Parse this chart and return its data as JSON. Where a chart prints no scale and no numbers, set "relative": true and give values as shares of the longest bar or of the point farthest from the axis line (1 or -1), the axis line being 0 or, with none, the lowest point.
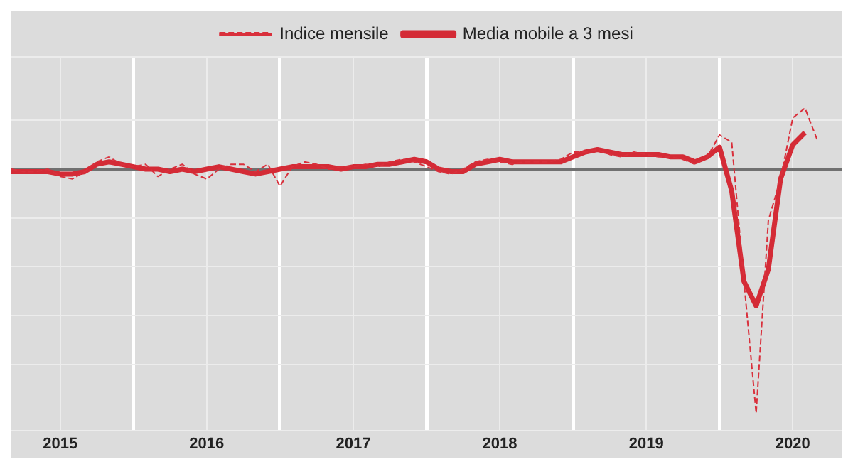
{
  "chart_data": {
    "type": "line",
    "relative": true,
    "grid": true,
    "legend": "top",
    "marker": "none",
    "x": [
      "2015-03",
      "2015-04",
      "2015-05",
      "2015-06",
      "2015-07",
      "2015-08",
      "2015-09",
      "2015-10",
      "2015-11",
      "2015-12",
      "2016-01",
      "2016-02",
      "2016-03",
      "2016-04",
      "2016-05",
      "2016-06",
      "2016-07",
      "2016-08",
      "2016-09",
      "2016-10",
      "2016-11",
      "2016-12",
      "2017-01",
      "2017-02",
      "2017-03",
      "2017-04",
      "2017-05",
      "2017-06",
      "2017-07",
      "2017-08",
      "2017-09",
      "2017-10",
      "2017-11",
      "2017-12",
      "2018-01",
      "2018-02",
      "2018-03",
      "2018-04",
      "2018-05",
      "2018-06",
      "2018-07",
      "2018-08",
      "2018-09",
      "2018-10",
      "2018-11",
      "2018-12",
      "2019-01",
      "2019-02",
      "2019-03",
      "2019-04",
      "2019-05",
      "2019-06",
      "2019-07",
      "2019-08",
      "2019-09",
      "2019-10",
      "2019-11",
      "2019-12",
      "2020-01",
      "2020-02",
      "2020-03",
      "2020-04",
      "2020-05",
      "2020-06",
      "2020-07",
      "2020-08",
      "2020-09"
    ],
    "xlim": [
      "2015-03",
      "2020-11"
    ],
    "xticks": [
      {
        "value": "2015-07",
        "label": "2015"
      },
      {
        "value": "2016-01",
        "label": null
      },
      {
        "value": "2016-07",
        "label": "2016"
      },
      {
        "value": "2017-01",
        "label": null
      },
      {
        "value": "2017-07",
        "label": "2017"
      },
      {
        "value": "2018-01",
        "label": null
      },
      {
        "value": "2018-07",
        "label": "2018"
      },
      {
        "value": "2019-01",
        "label": null
      },
      {
        "value": "2019-07",
        "label": "2019"
      },
      {
        "value": "2020-01",
        "label": null
      },
      {
        "value": "2020-07",
        "label": "2020"
      }
    ],
    "series": [
      {
        "name": "Indice mensile",
        "color": "#d9303c",
        "line_style": "dashed",
        "values": [
          0,
          -0.01,
          -0.01,
          0,
          -0.03,
          -0.04,
          -0.01,
          0.03,
          0.05,
          0.02,
          0.01,
          0.02,
          -0.03,
          0,
          0.02,
          -0.02,
          -0.04,
          0,
          0.02,
          0.02,
          -0.01,
          0.02,
          -0.07,
          0.01,
          0.03,
          0.02,
          0,
          0.01,
          0.01,
          0.02,
          0.01,
          0.03,
          0.04,
          0.03,
          0.01,
          -0.01,
          -0.02,
          0,
          0.03,
          0.04,
          0.03,
          0.02,
          0.03,
          0.03,
          0.03,
          0.04,
          0.07,
          0.07,
          0.08,
          0.06,
          0.05,
          0.07,
          0.06,
          0.05,
          0.05,
          0.04,
          0.02,
          0.05,
          0.14,
          0.11,
          -0.46,
          -1,
          -0.21,
          -0.04,
          0.21,
          0.25,
          0.12
        ]
      },
      {
        "name": "Media mobile a 3 mesi",
        "color": "#d42b36",
        "line_style": "solid",
        "values": [
          -0.01,
          -0.01,
          -0.01,
          -0.01,
          -0.02,
          -0.02,
          -0.01,
          0.02,
          0.03,
          0.02,
          0.01,
          0,
          0,
          -0.01,
          0,
          -0.01,
          0,
          0.01,
          0,
          -0.01,
          -0.02,
          -0.01,
          0,
          0.01,
          0.01,
          0.01,
          0.01,
          0,
          0.01,
          0.01,
          0.02,
          0.02,
          0.03,
          0.04,
          0.03,
          0,
          -0.01,
          -0.01,
          0.02,
          0.03,
          0.04,
          0.03,
          0.03,
          0.03,
          0.03,
          0.03,
          0.05,
          0.07,
          0.08,
          0.07,
          0.06,
          0.06,
          0.06,
          0.06,
          0.05,
          0.05,
          0.03,
          0.05,
          0.09,
          -0.09,
          -0.46,
          -0.56,
          -0.41,
          -0.04,
          0.1,
          0.15,
          null
        ]
      }
    ]
  }
}
